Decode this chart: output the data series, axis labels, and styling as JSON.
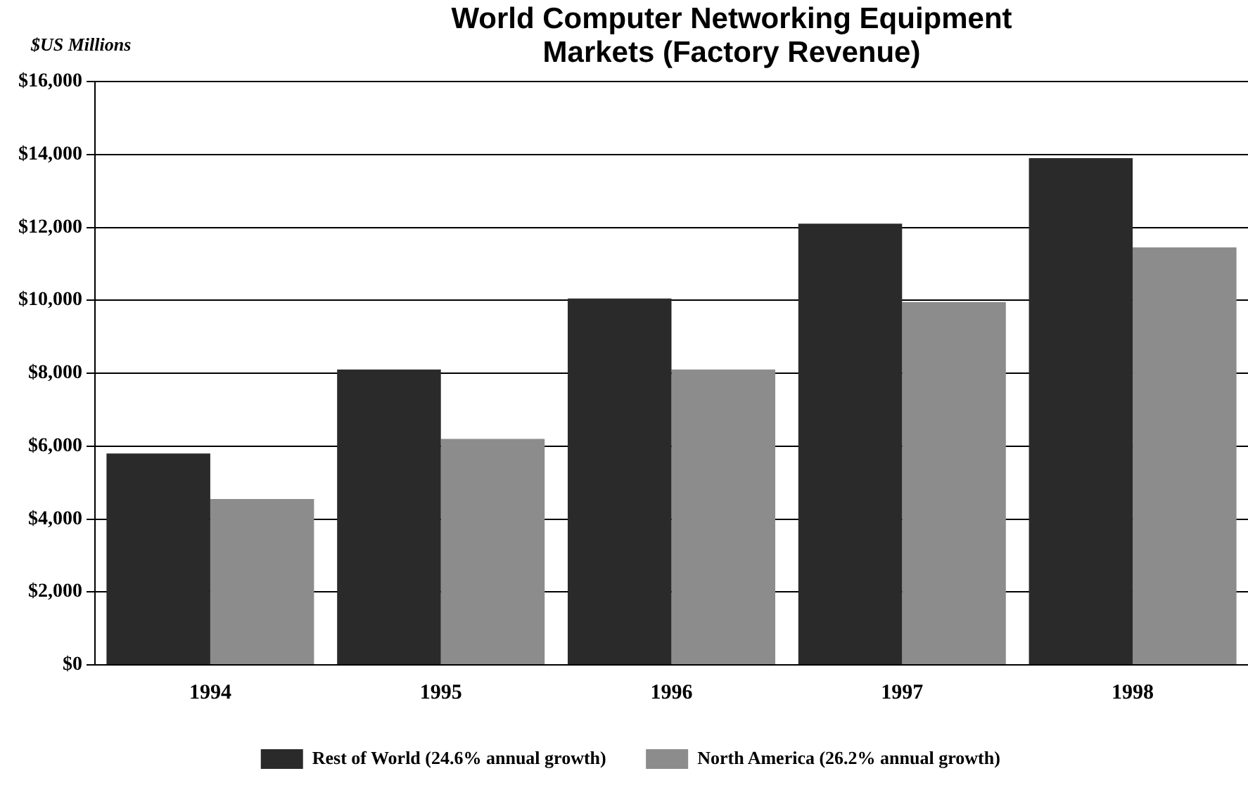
{
  "chart_data": {
    "type": "bar",
    "title": "World Computer Networking Equipment Markets (Factory Revenue)",
    "ylabel": "$US Millions",
    "categories": [
      "1994",
      "1995",
      "1996",
      "1997",
      "1998"
    ],
    "series": [
      {
        "name": "Rest of World (24.6% annual growth)",
        "color": "#2a2a2a",
        "values": [
          5800,
          8100,
          10050,
          12100,
          13900
        ]
      },
      {
        "name": "North America (26.2% annual growth)",
        "color": "#8c8c8c",
        "values": [
          4550,
          6200,
          8100,
          9950,
          11450
        ]
      }
    ],
    "ylim": [
      0,
      16000
    ],
    "yticks": [
      {
        "value": 0,
        "label": "$0"
      },
      {
        "value": 2000,
        "label": "$2,000"
      },
      {
        "value": 4000,
        "label": "$4,000"
      },
      {
        "value": 6000,
        "label": "$6,000"
      },
      {
        "value": 8000,
        "label": "$8,000"
      },
      {
        "value": 10000,
        "label": "$10,000"
      },
      {
        "value": 12000,
        "label": "$12,000"
      },
      {
        "value": 14000,
        "label": "$14,000"
      },
      {
        "value": 16000,
        "label": "$16,000"
      }
    ],
    "grid": "y",
    "legend": "bottom"
  }
}
